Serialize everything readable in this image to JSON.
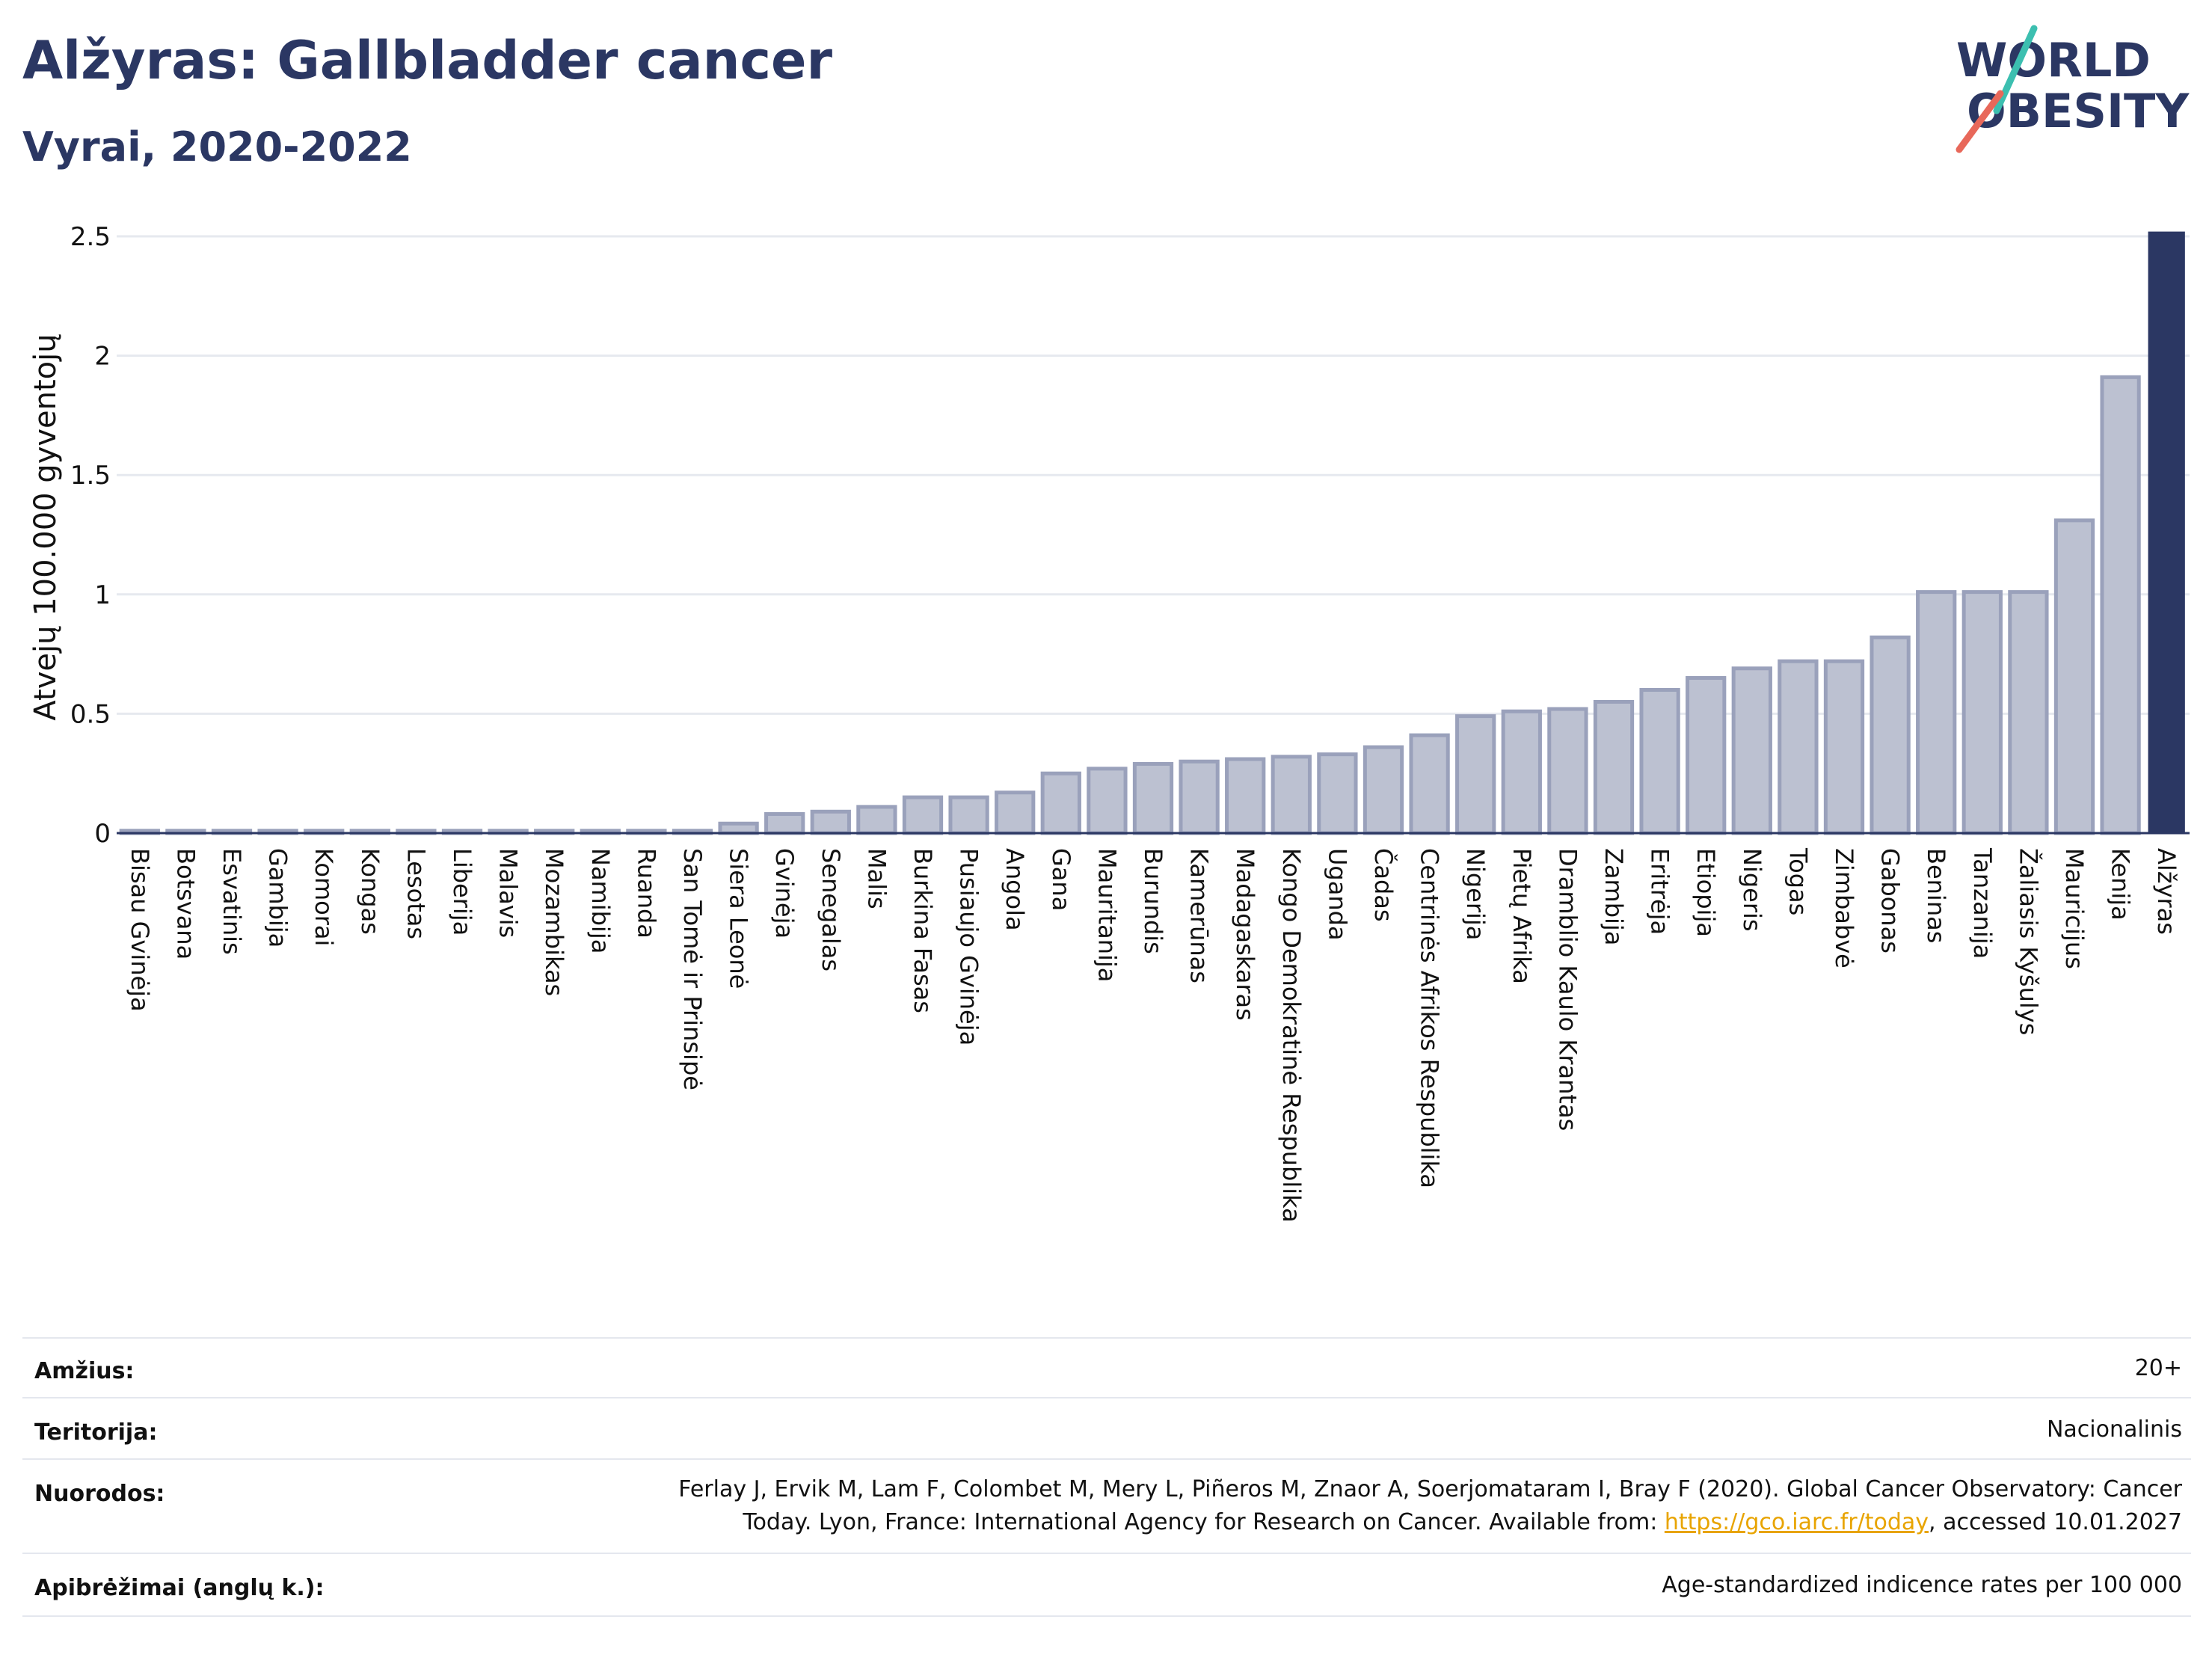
{
  "header": {
    "title": "Alžyras: Gallbladder cancer",
    "subtitle": "Vyrai, 2020-2022"
  },
  "logo": {
    "line1": "WORLD",
    "line2": "OBESITY",
    "colors": {
      "text": "#2b3763",
      "teal": "#3cbfb0",
      "coral": "#e8685a"
    }
  },
  "chart_data": {
    "type": "bar",
    "ylabel": "Atvejų 100.000 gyventojų",
    "ylim": [
      0,
      2.5
    ],
    "yticks": [
      0,
      0.5,
      1,
      1.5,
      2,
      2.5
    ],
    "ytick_labels": [
      "0",
      "0.5",
      "1",
      "1.5",
      "2",
      "2.5"
    ],
    "grid": true,
    "categories": [
      "Bisau Gvinėja",
      "Botsvana",
      "Esvatinis",
      "Gambija",
      "Komorai",
      "Kongas",
      "Lesotas",
      "Liberija",
      "Malavis",
      "Mozambikas",
      "Namibija",
      "Ruanda",
      "San Tomė ir Prinsipė",
      "Siera Leonė",
      "Gvinėja",
      "Senegalas",
      "Malis",
      "Burkina Fasas",
      "Pusiaujo Gvinėja",
      "Angola",
      "Gana",
      "Mauritanija",
      "Burundis",
      "Kamerūnas",
      "Madagaskaras",
      "Kongo Demokratinė Respublika",
      "Uganda",
      "Čadas",
      "Centrinės Afrikos Respublika",
      "Nigerija",
      "Pietų Afrika",
      "Dramblio Kaulo Krantas",
      "Zambija",
      "Eritrėja",
      "Etiopija",
      "Nigeris",
      "Togas",
      "Zimbabvė",
      "Gabonas",
      "Beninas",
      "Tanzanija",
      "Žaliasis Kyšulys",
      "Mauricijus",
      "Kenija",
      "Alžyras"
    ],
    "values": [
      0.01,
      0.01,
      0.01,
      0.01,
      0.01,
      0.01,
      0.01,
      0.01,
      0.01,
      0.01,
      0.01,
      0.01,
      0.01,
      0.04,
      0.08,
      0.09,
      0.11,
      0.15,
      0.15,
      0.17,
      0.25,
      0.27,
      0.29,
      0.3,
      0.31,
      0.32,
      0.33,
      0.36,
      0.41,
      0.49,
      0.51,
      0.52,
      0.55,
      0.6,
      0.65,
      0.69,
      0.72,
      0.72,
      0.82,
      1.01,
      1.01,
      1.01,
      1.31,
      1.91,
      2.52
    ],
    "highlight": "Alžyras",
    "colors": {
      "bar": "#bcc1d1",
      "bar_border": "#9aa1bb",
      "highlight": "#2b3763",
      "grid": "#e6e9ef"
    }
  },
  "meta": {
    "age_label": "Amžius:",
    "age_value": "20+",
    "territory_label": "Teritorija:",
    "territory_value": "Nacionalinis",
    "refs_label": "Nuorodos:",
    "refs_line1": "Ferlay J, Ervik M, Lam F, Colombet M, Mery L, Piñeros M, Znaor A, Soerjomataram I, Bray F (2020). Global Cancer Observatory: Cancer",
    "refs_line2_pre": "Today. Lyon, France: International Agency for Research on Cancer. Available from: ",
    "refs_link": "https://gco.iarc.fr/today",
    "refs_line2_post": ", accessed 10.01.2027",
    "defs_label": "Apibrėžimai (anglų k.):",
    "defs_value": "Age-standardized indicence rates per 100 000"
  }
}
